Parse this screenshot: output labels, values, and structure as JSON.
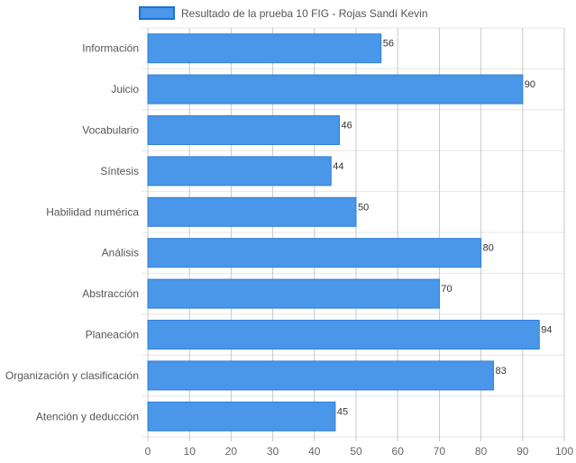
{
  "chart_data": {
    "type": "bar",
    "orientation": "horizontal",
    "categories": [
      "Información",
      "Juicio",
      "Vocabulario",
      "Síntesis",
      "Habilidad numérica",
      "Análisis",
      "Abstracción",
      "Planeación",
      "Organización y clasificación",
      "Atención y deducción"
    ],
    "series": [
      {
        "name": "Resultado de la prueba 10 FIG - Rojas Sandí Kevin",
        "values": [
          56,
          90,
          46,
          44,
          50,
          80,
          70,
          94,
          83,
          45
        ]
      }
    ],
    "x_ticks": [
      "0",
      "10",
      "20",
      "30",
      "40",
      "50",
      "60",
      "70",
      "80",
      "90",
      "100"
    ],
    "xlim": [
      0,
      100
    ],
    "xlabel": "",
    "ylabel": "",
    "grid": true,
    "legend_position": "top-center",
    "colors": {
      "bar_fill": "#4a96e8",
      "bar_border": "#2f7fd8",
      "legend_fill": "#4a96e8",
      "legend_border": "#1f6fd4",
      "grid": "#e6e6e6",
      "grid_vertical": "#c8c8c8"
    }
  }
}
